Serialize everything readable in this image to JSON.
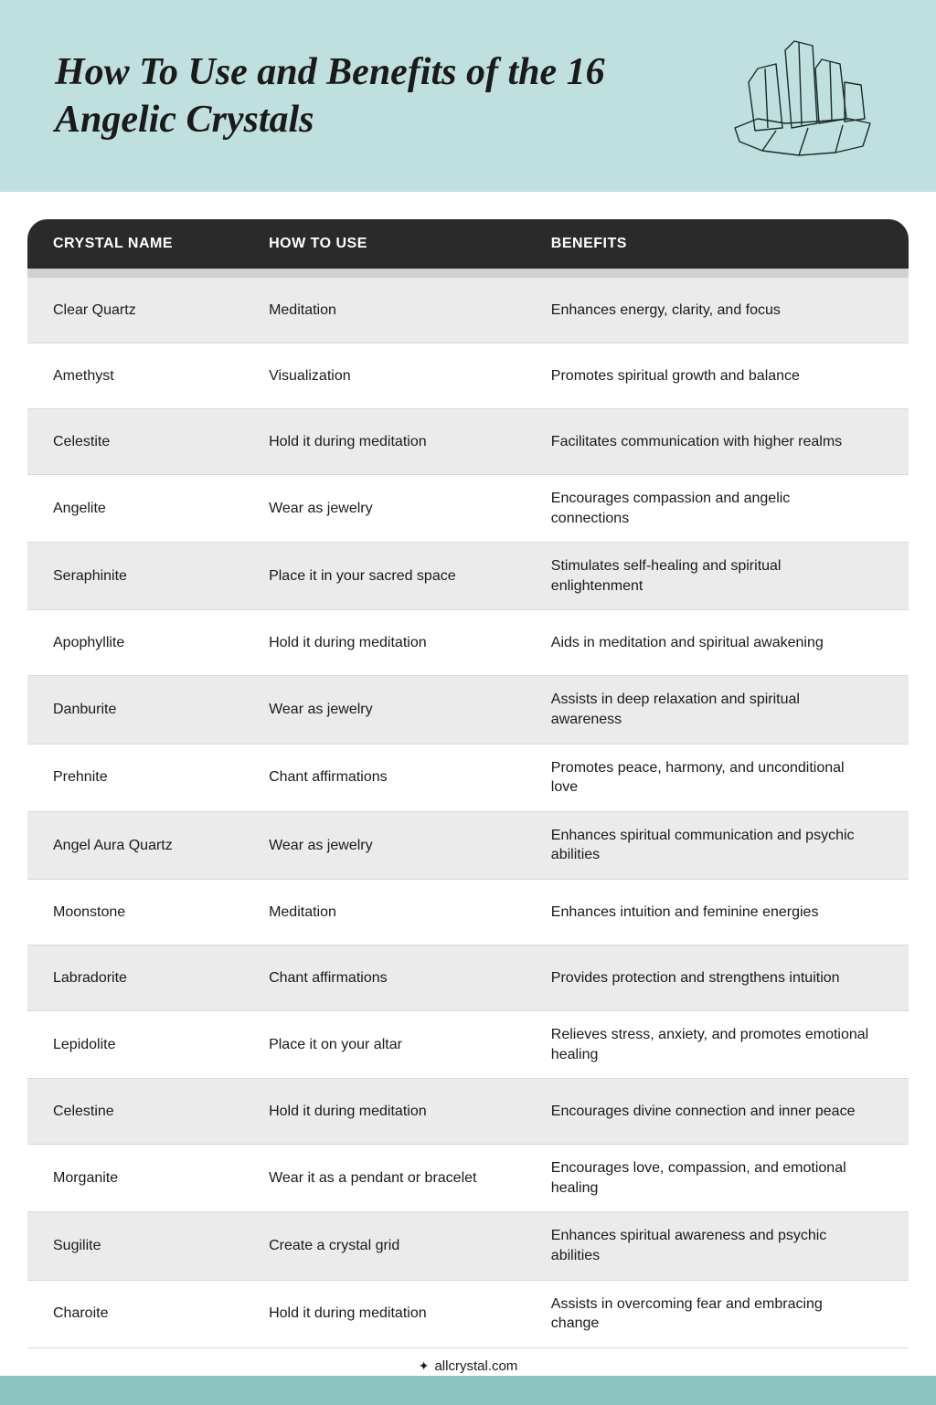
{
  "header": {
    "title": "How To Use and Benefits of the 16 Angelic Crystals",
    "bg_color": "#bfe0de",
    "title_color": "#1a1a1a",
    "title_fontsize": 42
  },
  "table": {
    "header_bg": "#2a2a2a",
    "header_text_color": "#ffffff",
    "row_odd_bg": "#ebebeb",
    "row_even_bg": "#ffffff",
    "border_color": "#d8d8d8",
    "columns": [
      {
        "key": "name",
        "label": "CRYSTAL NAME",
        "width_pct": 26
      },
      {
        "key": "use",
        "label": "HOW TO USE",
        "width_pct": 34
      },
      {
        "key": "ben",
        "label": "BENEFITS",
        "width_pct": 40
      }
    ],
    "rows": [
      {
        "name": "Clear Quartz",
        "use": "Meditation",
        "ben": "Enhances energy, clarity, and focus"
      },
      {
        "name": "Amethyst",
        "use": "Visualization",
        "ben": "Promotes spiritual growth and balance"
      },
      {
        "name": "Celestite",
        "use": "Hold it during meditation",
        "ben": "Facilitates communication with higher realms"
      },
      {
        "name": "Angelite",
        "use": "Wear as jewelry",
        "ben": "Encourages compassion and angelic connections"
      },
      {
        "name": "Seraphinite",
        "use": "Place it in your sacred space",
        "ben": "Stimulates self-healing and spiritual enlightenment"
      },
      {
        "name": "Apophyllite",
        "use": "Hold it during meditation",
        "ben": "Aids in meditation and spiritual awakening"
      },
      {
        "name": "Danburite",
        "use": "Wear as jewelry",
        "ben": "Assists in deep relaxation and spiritual awareness"
      },
      {
        "name": "Prehnite",
        "use": "Chant affirmations",
        "ben": "Promotes peace, harmony, and unconditional love"
      },
      {
        "name": "Angel Aura Quartz",
        "use": "Wear as jewelry",
        "ben": "Enhances spiritual communication and psychic abilities"
      },
      {
        "name": "Moonstone",
        "use": "Meditation",
        "ben": "Enhances intuition and feminine energies"
      },
      {
        "name": "Labradorite",
        "use": "Chant affirmations",
        "ben": "Provides protection and strengthens intuition"
      },
      {
        "name": "Lepidolite",
        "use": "Place it on your altar",
        "ben": "Relieves stress, anxiety, and promotes emotional healing"
      },
      {
        "name": "Celestine",
        "use": "Hold it during meditation",
        "ben": "Encourages divine connection and inner peace"
      },
      {
        "name": "Morganite",
        "use": "Wear it as a pendant or bracelet",
        "ben": "Encourages love, compassion, and emotional healing"
      },
      {
        "name": "Sugilite",
        "use": "Create a crystal grid",
        "ben": "Enhances spiritual awareness and psychic abilities"
      },
      {
        "name": "Charoite",
        "use": "Hold it during meditation",
        "ben": "Assists in overcoming fear and embracing change"
      }
    ]
  },
  "footer": {
    "text": "allcrystal.com",
    "bar_color": "#8cc5c0",
    "icon": "✦"
  }
}
